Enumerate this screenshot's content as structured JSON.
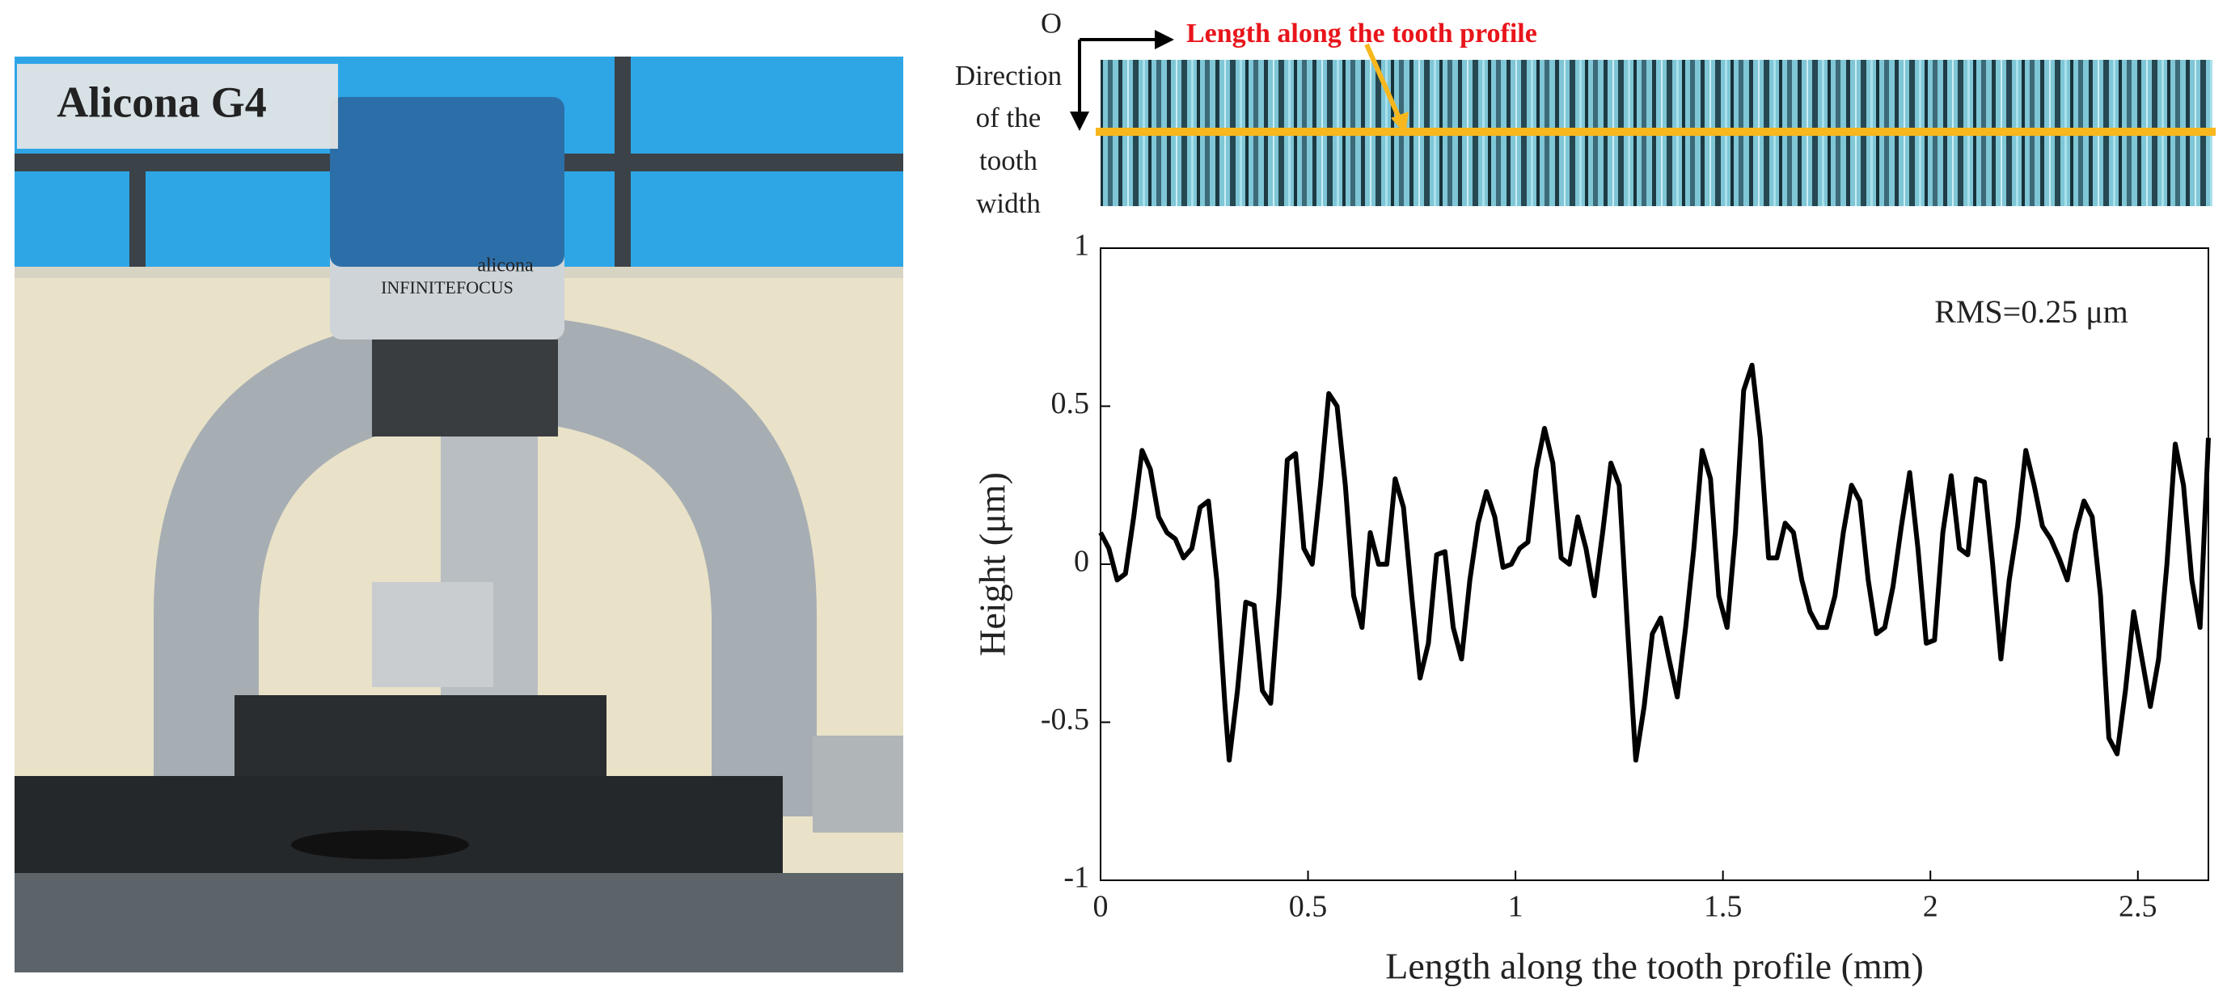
{
  "photo": {
    "label": "Alicona G4",
    "brand": "alicona",
    "product": "INFINITEFOCUS"
  },
  "strip": {
    "origin": "O",
    "length_label": "Length along the tooth profile",
    "direction_label": [
      "Direction",
      "of the",
      "tooth",
      "width"
    ]
  },
  "chart_data": {
    "type": "line",
    "color": "#000000",
    "annotation": "RMS=0.25 μm",
    "xlabel": "Length along the tooth profile (mm)",
    "ylabel": "Height (μm)",
    "xlim": [
      0,
      2.67
    ],
    "ylim": [
      -1,
      1
    ],
    "xticks": [
      0,
      0.5,
      1,
      1.5,
      2,
      2.5
    ],
    "yticks": [
      -1,
      -0.5,
      0,
      0.5,
      1
    ],
    "x": [
      0,
      0.02,
      0.04,
      0.06,
      0.08,
      0.1,
      0.12,
      0.14,
      0.16,
      0.18,
      0.2,
      0.22,
      0.24,
      0.26,
      0.28,
      0.3,
      0.31,
      0.33,
      0.35,
      0.37,
      0.39,
      0.41,
      0.43,
      0.45,
      0.47,
      0.49,
      0.51,
      0.53,
      0.55,
      0.57,
      0.59,
      0.61,
      0.63,
      0.65,
      0.67,
      0.69,
      0.71,
      0.73,
      0.75,
      0.77,
      0.79,
      0.81,
      0.83,
      0.85,
      0.87,
      0.89,
      0.91,
      0.93,
      0.95,
      0.97,
      0.99,
      1.01,
      1.03,
      1.05,
      1.07,
      1.09,
      1.11,
      1.13,
      1.15,
      1.17,
      1.19,
      1.21,
      1.23,
      1.25,
      1.27,
      1.29,
      1.31,
      1.33,
      1.35,
      1.37,
      1.39,
      1.41,
      1.43,
      1.45,
      1.47,
      1.49,
      1.51,
      1.53,
      1.55,
      1.57,
      1.59,
      1.61,
      1.63,
      1.65,
      1.67,
      1.69,
      1.71,
      1.73,
      1.75,
      1.77,
      1.79,
      1.81,
      1.83,
      1.85,
      1.87,
      1.89,
      1.91,
      1.93,
      1.95,
      1.97,
      1.99,
      2.01,
      2.03,
      2.05,
      2.07,
      2.09,
      2.11,
      2.13,
      2.15,
      2.17,
      2.19,
      2.21,
      2.23,
      2.25,
      2.27,
      2.29,
      2.31,
      2.33,
      2.35,
      2.37,
      2.39,
      2.41,
      2.43,
      2.45,
      2.47,
      2.49,
      2.51,
      2.53,
      2.55,
      2.57,
      2.59,
      2.61,
      2.63,
      2.65,
      2.67
    ],
    "values": [
      0.1,
      0.05,
      -0.05,
      -0.03,
      0.15,
      0.36,
      0.3,
      0.15,
      0.1,
      0.08,
      0.02,
      0.05,
      0.18,
      0.2,
      -0.05,
      -0.45,
      -0.62,
      -0.4,
      -0.12,
      -0.13,
      -0.4,
      -0.44,
      -0.1,
      0.33,
      0.35,
      0.05,
      0.0,
      0.25,
      0.54,
      0.5,
      0.25,
      -0.1,
      -0.2,
      0.1,
      0.0,
      0.0,
      0.27,
      0.18,
      -0.1,
      -0.36,
      -0.25,
      0.03,
      0.04,
      -0.2,
      -0.3,
      -0.05,
      0.13,
      0.23,
      0.15,
      -0.01,
      0.0,
      0.05,
      0.07,
      0.3,
      0.43,
      0.32,
      0.02,
      0.0,
      0.15,
      0.05,
      -0.1,
      0.1,
      0.32,
      0.25,
      -0.2,
      -0.62,
      -0.45,
      -0.22,
      -0.17,
      -0.3,
      -0.42,
      -0.2,
      0.05,
      0.36,
      0.27,
      -0.1,
      -0.2,
      0.1,
      0.55,
      0.63,
      0.4,
      0.02,
      0.02,
      0.13,
      0.1,
      -0.05,
      -0.15,
      -0.2,
      -0.2,
      -0.1,
      0.1,
      0.25,
      0.2,
      -0.05,
      -0.22,
      -0.2,
      -0.07,
      0.12,
      0.29,
      0.05,
      -0.25,
      -0.24,
      0.1,
      0.28,
      0.05,
      0.03,
      0.27,
      0.26,
      0.0,
      -0.3,
      -0.05,
      0.12,
      0.36,
      0.25,
      0.12,
      0.08,
      0.02,
      -0.05,
      0.1,
      0.2,
      0.15,
      -0.1,
      -0.55,
      -0.6,
      -0.4,
      -0.15,
      -0.3,
      -0.45,
      -0.3,
      0.0,
      0.38,
      0.25,
      -0.05,
      -0.2,
      0.4
    ]
  }
}
